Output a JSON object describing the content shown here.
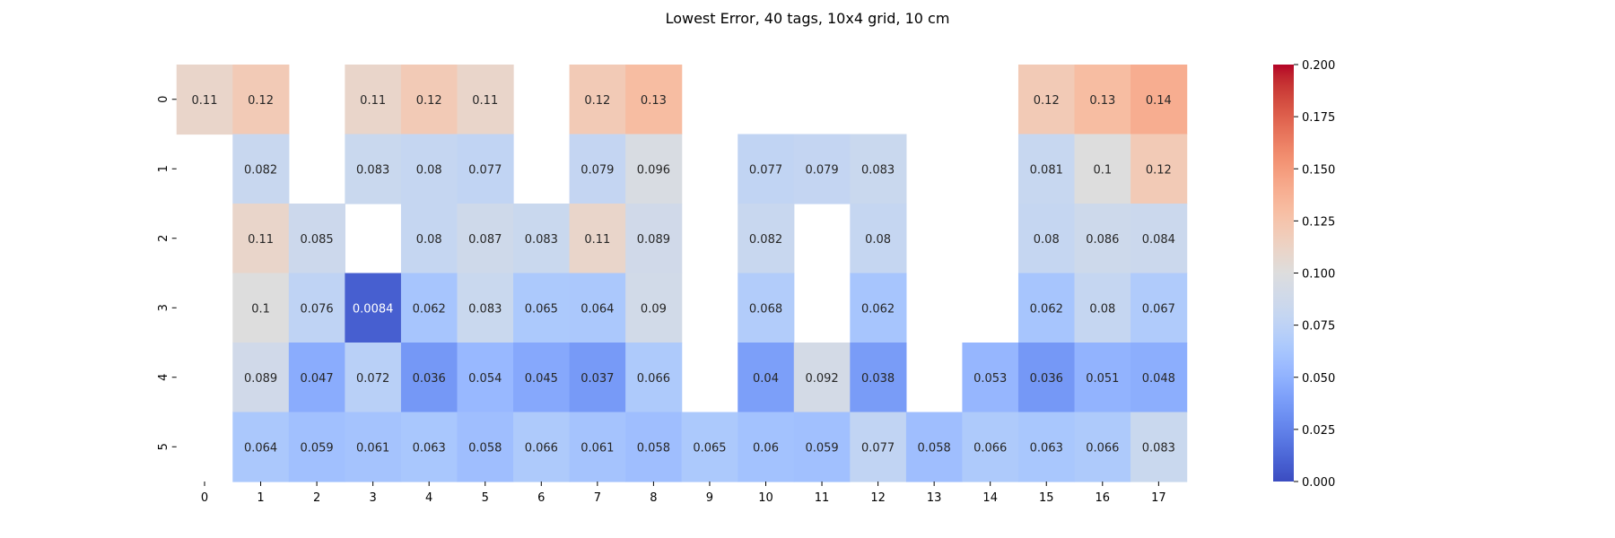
{
  "chart_data": {
    "type": "heatmap",
    "title": "Lowest Error, 40 tags, 10x4 grid, 10 cm",
    "xlabel": "",
    "ylabel": "",
    "x_ticks": [
      "0",
      "1",
      "2",
      "3",
      "4",
      "5",
      "6",
      "7",
      "8",
      "9",
      "10",
      "11",
      "12",
      "13",
      "14",
      "15",
      "16",
      "17"
    ],
    "y_ticks": [
      "0",
      "1",
      "2",
      "3",
      "4",
      "5"
    ],
    "colormap": "coolwarm",
    "vmin": 0.0,
    "vmax": 0.2,
    "colorbar_ticks": [
      "0.000",
      "0.025",
      "0.050",
      "0.075",
      "0.100",
      "0.125",
      "0.150",
      "0.175",
      "0.200"
    ],
    "colorbar_tick_values": [
      0.0,
      0.025,
      0.05,
      0.075,
      0.1,
      0.125,
      0.15,
      0.175,
      0.2
    ],
    "values": [
      [
        0.11,
        0.12,
        null,
        0.11,
        0.12,
        0.11,
        null,
        0.12,
        0.13,
        null,
        null,
        null,
        null,
        null,
        null,
        0.12,
        0.13,
        0.14
      ],
      [
        null,
        0.082,
        null,
        0.083,
        0.08,
        0.077,
        null,
        0.079,
        0.096,
        null,
        0.077,
        0.079,
        0.083,
        null,
        null,
        0.081,
        0.1,
        0.12
      ],
      [
        null,
        0.11,
        0.085,
        null,
        0.08,
        0.087,
        0.083,
        0.11,
        0.089,
        null,
        0.082,
        null,
        0.08,
        null,
        null,
        0.08,
        0.086,
        0.084
      ],
      [
        null,
        0.1,
        0.076,
        0.0084,
        0.062,
        0.083,
        0.065,
        0.064,
        0.09,
        null,
        0.068,
        null,
        0.062,
        null,
        null,
        0.062,
        0.08,
        0.067
      ],
      [
        null,
        0.089,
        0.047,
        0.072,
        0.036,
        0.054,
        0.045,
        0.037,
        0.066,
        null,
        0.04,
        0.092,
        0.038,
        null,
        0.053,
        0.036,
        0.051,
        0.048
      ],
      [
        null,
        0.064,
        0.059,
        0.061,
        0.063,
        0.058,
        0.066,
        0.061,
        0.058,
        0.065,
        0.06,
        0.059,
        0.077,
        0.058,
        0.066,
        0.063,
        0.066,
        0.083
      ]
    ],
    "labels": [
      [
        "0.11",
        "0.12",
        null,
        "0.11",
        "0.12",
        "0.11",
        null,
        "0.12",
        "0.13",
        null,
        null,
        null,
        null,
        null,
        null,
        "0.12",
        "0.13",
        "0.14"
      ],
      [
        null,
        "0.082",
        null,
        "0.083",
        "0.08",
        "0.077",
        null,
        "0.079",
        "0.096",
        null,
        "0.077",
        "0.079",
        "0.083",
        null,
        null,
        "0.081",
        "0.1",
        "0.12"
      ],
      [
        null,
        "0.11",
        "0.085",
        null,
        "0.08",
        "0.087",
        "0.083",
        "0.11",
        "0.089",
        null,
        "0.082",
        null,
        "0.08",
        null,
        null,
        "0.08",
        "0.086",
        "0.084"
      ],
      [
        null,
        "0.1",
        "0.076",
        "0.0084",
        "0.062",
        "0.083",
        "0.065",
        "0.064",
        "0.09",
        null,
        "0.068",
        null,
        "0.062",
        null,
        null,
        "0.062",
        "0.08",
        "0.067"
      ],
      [
        null,
        "0.089",
        "0.047",
        "0.072",
        "0.036",
        "0.054",
        "0.045",
        "0.037",
        "0.066",
        null,
        "0.04",
        "0.092",
        "0.038",
        null,
        "0.053",
        "0.036",
        "0.051",
        "0.048"
      ],
      [
        null,
        "0.064",
        "0.059",
        "0.061",
        "0.063",
        "0.058",
        "0.066",
        "0.061",
        "0.058",
        "0.065",
        "0.06",
        "0.059",
        "0.077",
        "0.058",
        "0.066",
        "0.063",
        "0.066",
        "0.083"
      ]
    ],
    "grid": false,
    "colorbar_position": "right"
  }
}
